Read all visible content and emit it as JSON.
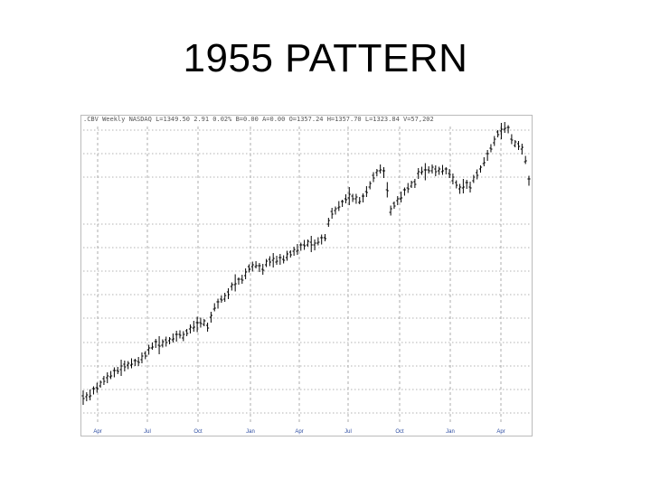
{
  "slide": {
    "title": "1955 PATTERN"
  },
  "chart_data": {
    "type": "ohlc",
    "title": "",
    "header": ".CBV Weekly NASDAQ L=1349.50 2.91 0.02% B=0.00 A=0.00 O=1357.24 H=1357.70 L=1323.84 V=57,202",
    "x_tick_labels": [
      "Apr",
      "Jul",
      "Oct",
      "Jan",
      "Apr",
      "Jul",
      "Oct",
      "Jan",
      "Apr"
    ],
    "xlabel": "",
    "ylabel": "",
    "grid": true,
    "series": [
      {
        "name": "",
        "values": [
          440,
          439,
          437,
          432,
          429,
          425,
          421,
          418,
          415,
          412,
          410,
          407,
          405,
          404,
          402,
          401,
          400,
          396,
          393,
          387,
          383,
          380,
          382,
          380,
          378,
          377,
          374,
          372,
          370,
          372,
          368,
          364,
          361,
          359,
          357,
          357,
          362,
          351,
          340,
          336,
          331,
          329,
          325,
          317,
          313,
          311,
          309,
          303,
          297,
          295,
          293,
          296,
          298,
          291,
          289,
          288,
          288,
          287,
          287,
          283,
          281,
          278,
          276,
          273,
          271,
          269,
          270,
          271,
          267,
          265,
          263,
          246,
          236,
          233,
          228,
          225,
          220,
          217,
          219,
          220,
          222,
          219,
          212,
          205,
          196,
          191,
          187,
          191,
          210,
          233,
          227,
          222,
          218,
          212,
          208,
          204,
          203,
          192,
          189,
          190,
          188,
          187,
          189,
          189,
          188,
          189,
          192,
          198,
          204,
          209,
          206,
          204,
          207,
          198,
          193,
          187,
          179,
          172,
          164,
          156,
          148,
          145,
          141,
          143,
          154,
          159,
          161,
          165,
          177,
          200
        ]
      }
    ]
  }
}
